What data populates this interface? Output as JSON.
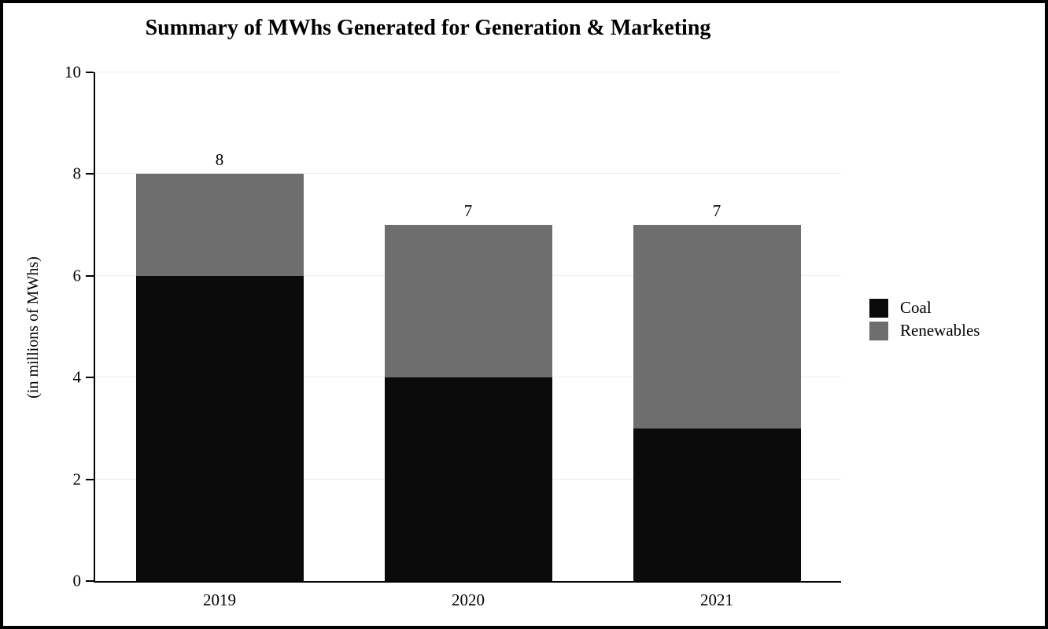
{
  "chart_data": {
    "type": "bar",
    "stacked": true,
    "title": "Summary of MWhs Generated for Generation & Marketing",
    "xlabel": "",
    "ylabel": "(in millions of MWhs)",
    "categories": [
      "2019",
      "2020",
      "2021"
    ],
    "series": [
      {
        "name": "Coal",
        "color": "#0b0b0b",
        "values": [
          6,
          4,
          3
        ]
      },
      {
        "name": "Renewables",
        "color": "#6e6e6e",
        "values": [
          2,
          3,
          4
        ]
      }
    ],
    "totals": [
      8,
      7,
      7
    ],
    "total_labels": [
      "8",
      "7",
      "7"
    ],
    "ylim": [
      0,
      10
    ],
    "yticks": [
      0,
      2,
      4,
      6,
      8,
      10
    ],
    "grid": true,
    "legend_position": "right"
  }
}
